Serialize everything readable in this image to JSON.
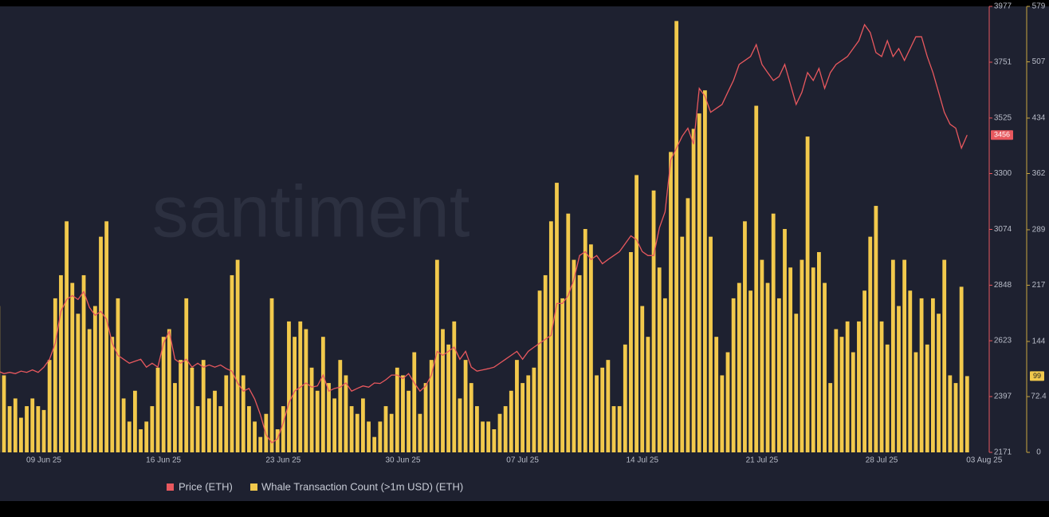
{
  "chart_data": {
    "type": "bar-line",
    "watermark": "santiment",
    "categories": [
      null,
      null,
      null,
      null,
      null,
      null,
      null,
      null,
      "09 Jun 25",
      null,
      null,
      null,
      null,
      null,
      null,
      null,
      null,
      null,
      null,
      null,
      null,
      null,
      null,
      null,
      null,
      null,
      null,
      null,
      null,
      "16 Jun 25",
      null,
      null,
      null,
      null,
      null,
      null,
      null,
      null,
      null,
      null,
      null,
      null,
      null,
      null,
      null,
      null,
      null,
      null,
      null,
      null,
      "23 Jun 25",
      null,
      null,
      null,
      null,
      null,
      null,
      null,
      null,
      null,
      null,
      null,
      null,
      null,
      null,
      null,
      null,
      null,
      null,
      null,
      null,
      "30 Jun 25",
      null,
      null,
      null,
      null,
      null,
      null,
      null,
      null,
      null,
      null,
      null,
      null,
      null,
      null,
      null,
      null,
      null,
      null,
      null,
      null,
      "07 Jul 25",
      null,
      null,
      null,
      null,
      null,
      null,
      null,
      null,
      null,
      null,
      null,
      null,
      null,
      null,
      null,
      null,
      null,
      null,
      null,
      null,
      "14 Jul 25",
      null,
      null,
      null,
      null,
      null,
      null,
      null,
      null,
      null,
      null,
      null,
      null,
      null,
      null,
      null,
      null,
      null,
      null,
      null,
      null,
      "21 Jul 25",
      null,
      null,
      null,
      null,
      null,
      null,
      null,
      null,
      null,
      null,
      null,
      null,
      null,
      null,
      null,
      null,
      null,
      null,
      null,
      null,
      "28 Jul 25",
      null,
      null,
      null,
      null,
      null,
      null,
      null,
      null,
      null,
      null,
      null,
      null,
      null,
      null,
      null,
      null,
      null,
      "03 Aug 25"
    ],
    "series": [
      {
        "name": "Price (ETH)",
        "color": "#e8585e",
        "axis": "y",
        "values": [
          2500,
          2490,
          2495,
          2490,
          2500,
          2495,
          2505,
          2495,
          2516,
          2548,
          2613,
          2742,
          2790,
          2806,
          2790,
          2822,
          2758,
          2726,
          2742,
          2710,
          2613,
          2564,
          2548,
          2532,
          2540,
          2548,
          2516,
          2532,
          2516,
          2613,
          2661,
          2548,
          2532,
          2548,
          2516,
          2532,
          2516,
          2525,
          2516,
          2525,
          2510,
          2500,
          2452,
          2419,
          2430,
          2387,
          2323,
          2242,
          2210,
          2226,
          2290,
          2371,
          2419,
          2435,
          2452,
          2435,
          2440,
          2484,
          2419,
          2430,
          2435,
          2452,
          2419,
          2430,
          2440,
          2435,
          2452,
          2450,
          2465,
          2484,
          2484,
          2470,
          2490,
          2452,
          2419,
          2440,
          2484,
          2580,
          2564,
          2580,
          2597,
          2548,
          2580,
          2516,
          2500,
          2505,
          2510,
          2516,
          2532,
          2548,
          2564,
          2580,
          2548,
          2580,
          2597,
          2613,
          2629,
          2645,
          2774,
          2774,
          2806,
          2871,
          2968,
          2984,
          2952,
          2968,
          2935,
          2952,
          2968,
          2984,
          3016,
          3048,
          3032,
          2984,
          2968,
          2968,
          3080,
          3145,
          3355,
          3403,
          3451,
          3484,
          3419,
          3645,
          3613,
          3548,
          3564,
          3580,
          3629,
          3677,
          3742,
          3758,
          3774,
          3822,
          3742,
          3709,
          3677,
          3693,
          3742,
          3661,
          3580,
          3629,
          3709,
          3677,
          3726,
          3645,
          3709,
          3742,
          3758,
          3774,
          3806,
          3838,
          3903,
          3871,
          3790,
          3774,
          3838,
          3774,
          3806,
          3758,
          3806,
          3854,
          3854,
          3774,
          3709,
          3629,
          3548,
          3500,
          3484,
          3403,
          3456,
          null,
          null,
          null
        ]
      },
      {
        "name": "Whale Transaction Count (>1m USD) (ETH)",
        "color": "#f2c94c",
        "axis": "y2",
        "values": [
          190,
          100,
          60,
          70,
          45,
          60,
          70,
          60,
          55,
          120,
          200,
          230,
          300,
          220,
          180,
          230,
          160,
          190,
          280,
          300,
          150,
          200,
          70,
          40,
          80,
          30,
          40,
          60,
          110,
          150,
          160,
          90,
          120,
          200,
          110,
          60,
          120,
          70,
          80,
          60,
          100,
          230,
          250,
          100,
          60,
          40,
          20,
          50,
          200,
          30,
          60,
          170,
          150,
          170,
          160,
          110,
          80,
          150,
          90,
          70,
          120,
          100,
          60,
          50,
          70,
          40,
          20,
          40,
          60,
          50,
          110,
          100,
          80,
          130,
          50,
          90,
          120,
          250,
          160,
          140,
          170,
          70,
          120,
          90,
          60,
          40,
          40,
          30,
          50,
          60,
          80,
          120,
          90,
          100,
          110,
          210,
          230,
          300,
          350,
          200,
          310,
          250,
          230,
          290,
          270,
          100,
          110,
          120,
          60,
          60,
          140,
          260,
          360,
          190,
          150,
          340,
          240,
          200,
          390,
          560,
          280,
          330,
          420,
          440,
          470,
          280,
          150,
          100,
          130,
          200,
          220,
          300,
          210,
          450,
          250,
          220,
          310,
          200,
          290,
          240,
          180,
          250,
          410,
          240,
          260,
          220,
          90,
          160,
          150,
          170,
          130,
          170,
          210,
          280,
          320,
          170,
          140,
          250,
          190,
          250,
          210,
          130,
          200,
          140,
          200,
          180,
          250,
          100,
          90,
          215,
          99,
          null,
          null,
          null
        ]
      }
    ],
    "ylim": [
      2171,
      3977
    ],
    "yticks": [
      2171,
      2397,
      2623,
      2848,
      3074,
      3300,
      3525,
      3751,
      3977
    ],
    "y2lim": [
      0,
      579
    ],
    "y2ticks": [
      0,
      72.4,
      144,
      217,
      289,
      362,
      434,
      507,
      579
    ],
    "grid": false
  }
}
